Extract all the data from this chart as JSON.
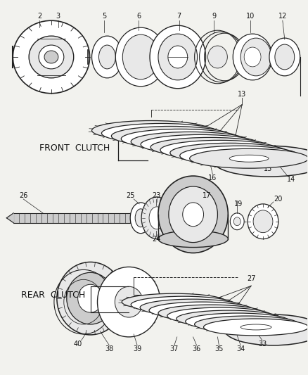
{
  "bg_color": "#f2f2ee",
  "line_color": "#222222",
  "text_color": "#111111",
  "front_clutch_label": "FRONT  CLUTCH",
  "rear_clutch_label": "REAR  CLUTCH",
  "fig_w": 4.38,
  "fig_h": 5.33,
  "dpi": 100
}
